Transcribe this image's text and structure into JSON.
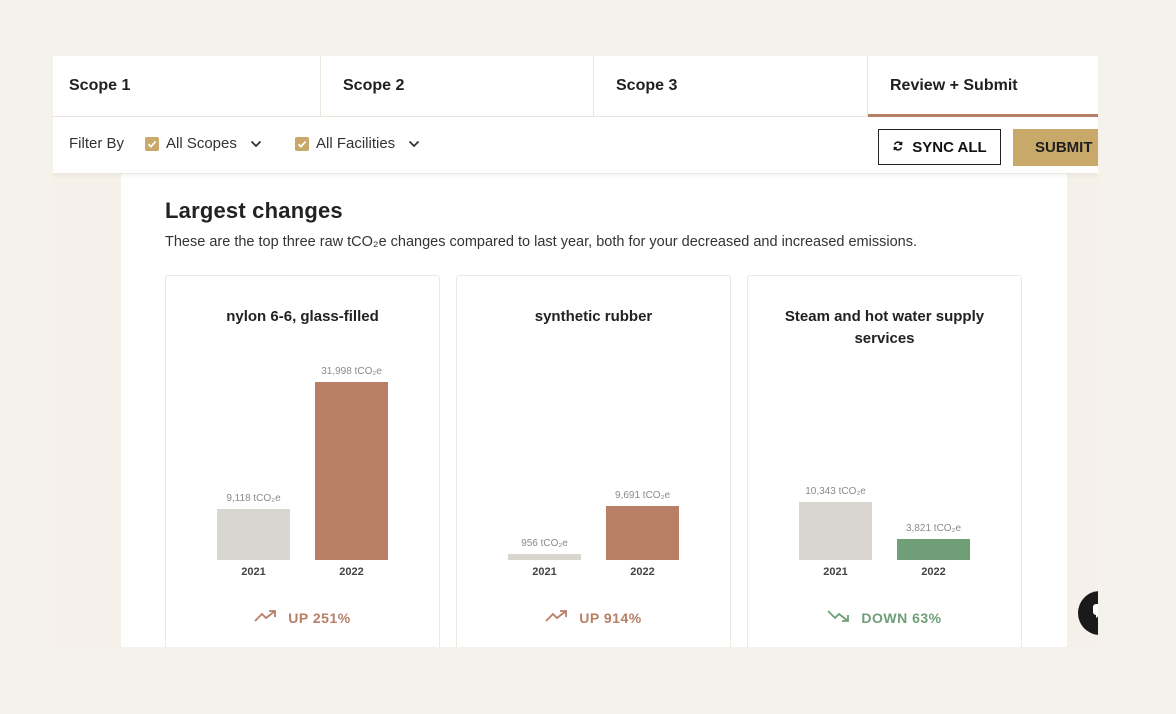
{
  "tabs": [
    {
      "label": "Scope 1",
      "active": false
    },
    {
      "label": "Scope 2",
      "active": false
    },
    {
      "label": "Scope 3",
      "active": false
    },
    {
      "label": "Review + Submit",
      "active": true
    }
  ],
  "filter_bar": {
    "label": "Filter By",
    "scopes_filter": "All Scopes",
    "facilities_filter": "All Facilities",
    "sync_label": "SYNC ALL",
    "submit_label": "SUBMIT"
  },
  "section": {
    "title": "Largest changes",
    "description": "These are the top three raw tCO₂e changes compared to last year, both for your decreased and increased emissions."
  },
  "colors": {
    "accent_gold": "#c9a96a",
    "increase": "#b87e66",
    "decrease": "#6f9e77",
    "previous_bar": "#d9d6cf"
  },
  "chart_data": [
    {
      "type": "bar",
      "title": "nylon 6-6, glass-filled",
      "categories": [
        "2021",
        "2022"
      ],
      "values": [
        9118,
        31998
      ],
      "value_labels": [
        "9,118 tCO₂e",
        "31,998 tCO₂e"
      ],
      "unit": "tCO₂e",
      "change_direction": "up",
      "change_label": "UP 251%"
    },
    {
      "type": "bar",
      "title": "synthetic rubber",
      "categories": [
        "2021",
        "2022"
      ],
      "values": [
        956,
        9691
      ],
      "value_labels": [
        "956 tCO₂e",
        "9,691 tCO₂e"
      ],
      "unit": "tCO₂e",
      "change_direction": "up",
      "change_label": "UP 914%"
    },
    {
      "type": "bar",
      "title": "Steam and hot water supply services",
      "categories": [
        "2021",
        "2022"
      ],
      "values": [
        10343,
        3821
      ],
      "value_labels": [
        "10,343 tCO₂e",
        "3,821 tCO₂e"
      ],
      "unit": "tCO₂e",
      "change_direction": "down",
      "change_label": "DOWN 63%"
    }
  ]
}
